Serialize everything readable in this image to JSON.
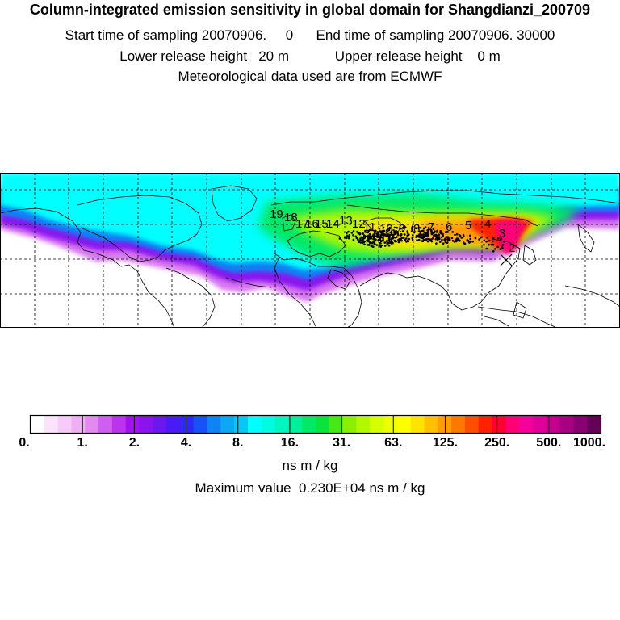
{
  "header": {
    "title": "Column-integrated emission sensitivity in global domain for Shangdianzi_200709",
    "line2": "Start time of sampling 20070906.     0      End time of sampling 20070906. 30000",
    "line3": "Lower release height   20 m            Upper release height    0 m",
    "line4": "Meteorological data used are from ECMWF"
  },
  "map": {
    "track_labels": [
      "19",
      "18",
      "17",
      "16",
      "15",
      "14",
      "13",
      "12",
      "11",
      "10",
      "9",
      "8",
      "7",
      "6",
      "5",
      "4",
      "3",
      "2"
    ],
    "station_marker": "receptor-cross-icon"
  },
  "colorbar": {
    "ticks": [
      "0.",
      "1.",
      "2.",
      "4.",
      "8.",
      "16.",
      "31.",
      "63.",
      "125.",
      "250.",
      "500.",
      "1000."
    ],
    "colors": [
      "#ffffff",
      "#fbe3fb",
      "#f6cbf7",
      "#efb0f3",
      "#e28af0",
      "#cf5ff0",
      "#bb33ee",
      "#a311ee",
      "#8a14ee",
      "#6b18f0",
      "#4a1bf5",
      "#2a2bf6",
      "#1752f6",
      "#0f82f4",
      "#0ba8f3",
      "#06c8f4",
      "#00ffff",
      "#00fbe2",
      "#00f5bf",
      "#00ef9a",
      "#00e868",
      "#0ae33a",
      "#45ea14",
      "#88f000",
      "#b2f800",
      "#d6ff00",
      "#eeff00",
      "#ffff00",
      "#ffe400",
      "#ffc000",
      "#ff9d00",
      "#ff7800",
      "#ff4e00",
      "#ff2200",
      "#ff0033",
      "#ff0077",
      "#f4009a",
      "#dd0099",
      "#c4008f",
      "#a70080",
      "#880072",
      "#640055"
    ],
    "unit": "ns m / kg",
    "max_text": "Maximum value  0.230E+04 ns m / kg"
  }
}
